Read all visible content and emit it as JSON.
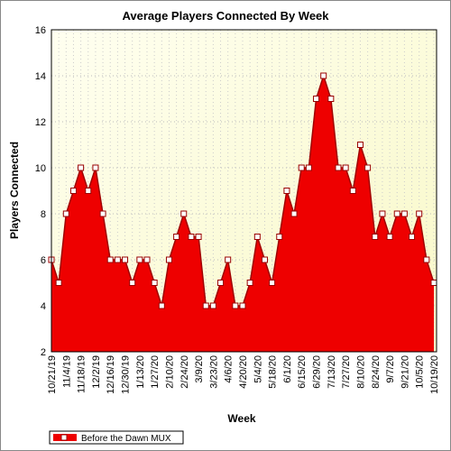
{
  "chart_data": {
    "type": "area",
    "title": "Average Players Connected By Week",
    "x_label": "Week",
    "y_label": "Players Connected",
    "categories": [
      "10/21/19",
      null,
      "11/4/19",
      null,
      "11/18/19",
      null,
      "12/2/19",
      null,
      "12/16/19",
      null,
      "12/30/19",
      null,
      "1/13/20",
      null,
      "1/27/20",
      null,
      "2/10/20",
      null,
      "2/24/20",
      null,
      "3/9/20",
      null,
      "3/23/20",
      null,
      "4/6/20",
      null,
      "4/20/20",
      null,
      "5/4/20",
      null,
      "5/18/20",
      null,
      "6/1/20",
      null,
      "6/15/20",
      null,
      "6/29/20",
      null,
      "7/13/20",
      null,
      "7/27/20",
      null,
      "8/10/20",
      null,
      "8/24/20",
      null,
      "9/7/20",
      null,
      "9/21/20",
      null,
      "10/5/20",
      null,
      "10/19/20"
    ],
    "series": [
      {
        "name": "Before the Dawn MUX",
        "color": "#ee0000",
        "values": [
          6,
          5,
          8,
          9,
          10,
          9,
          10,
          8,
          6,
          6,
          6,
          5,
          6,
          6,
          5,
          4,
          6,
          7,
          8,
          7,
          7,
          4,
          4,
          5,
          6,
          4,
          4,
          5,
          7,
          6,
          5,
          7,
          9,
          8,
          10,
          10,
          13,
          14,
          13,
          10,
          10,
          9,
          11,
          10,
          7,
          8,
          7,
          8,
          8,
          7,
          8,
          6,
          5
        ]
      }
    ],
    "ylim": [
      2,
      16
    ],
    "yticks": [
      2,
      4,
      6,
      8,
      10,
      12,
      14,
      16
    ],
    "grid": true
  }
}
